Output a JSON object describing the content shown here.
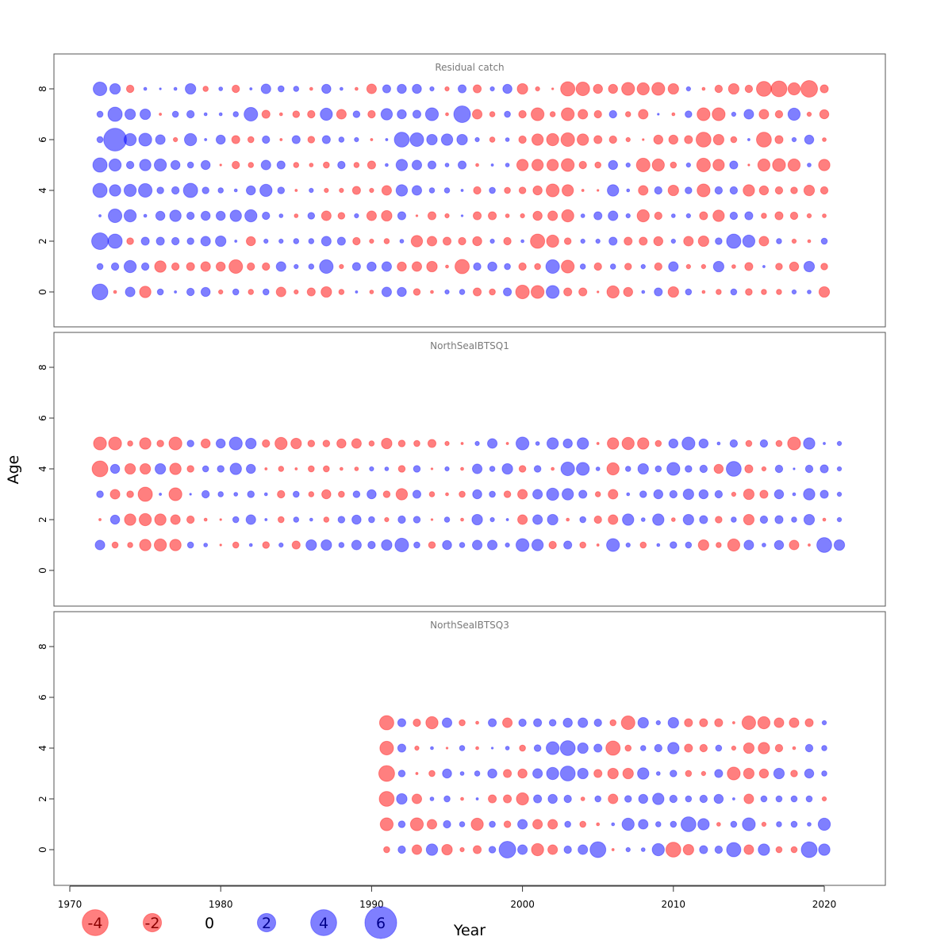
{
  "chart_data": {
    "type": "scatter",
    "subtype": "bubble",
    "xlabel": "Year",
    "ylabel": "Age",
    "x_range": [
      1970,
      2024
    ],
    "xticks": [
      1970,
      1980,
      1990,
      2000,
      2010,
      2020
    ],
    "y_range": [
      -1.5,
      9.5
    ],
    "yticks": [
      0,
      2,
      4,
      6,
      8
    ],
    "colors": {
      "negative": "#ff0000",
      "positive": "#0000ff"
    },
    "legend": {
      "placement": "bottom-left",
      "values": [
        -4,
        -2,
        0,
        2,
        4,
        6
      ]
    },
    "panels": [
      {
        "title": "Residual catch",
        "first_year": 1972,
        "rows": [
          {
            "age": 8,
            "values": [
              1.0,
              0.6,
              -0.3,
              0.05,
              0.02,
              0.05,
              0.6,
              -0.15,
              0.08,
              -0.3,
              0.03,
              0.5,
              0.2,
              0.15,
              -0.05,
              0.45,
              0.05,
              -0.05,
              -0.5,
              0.35,
              0.45,
              0.45,
              0.1,
              -0.1,
              0.35,
              -0.35,
              0.1,
              0.45,
              -0.6,
              -0.1,
              -0.02,
              -1.1,
              -1.0,
              -0.45,
              -0.45,
              -0.9,
              -0.8,
              -0.9,
              -0.6,
              0.1,
              -0.05,
              -0.3,
              -0.6,
              -0.3,
              -1.2,
              -1.35,
              -0.8,
              -1.5,
              -0.35
            ]
          },
          {
            "age": 7,
            "values": [
              0.2,
              1.1,
              0.6,
              0.6,
              -0.03,
              0.2,
              0.3,
              0.05,
              0.05,
              0.15,
              1.0,
              -0.35,
              -0.05,
              -0.25,
              -0.3,
              0.8,
              -0.5,
              0.25,
              -0.3,
              0.7,
              0.45,
              0.35,
              0.9,
              -0.05,
              1.5,
              -0.5,
              -0.15,
              0.2,
              -0.3,
              -0.9,
              -0.15,
              -0.9,
              -0.5,
              -0.3,
              0.3,
              -0.15,
              -0.5,
              0.02,
              -0.05,
              0.25,
              -0.9,
              -0.9,
              0.1,
              0.5,
              -0.5,
              -0.3,
              0.8,
              -0.1,
              -0.45
            ]
          },
          {
            "age": 6,
            "values": [
              0.2,
              2.8,
              0.8,
              0.9,
              0.5,
              -0.1,
              0.8,
              0.03,
              0.45,
              -0.35,
              -0.2,
              0.3,
              -0.03,
              0.35,
              -0.25,
              0.35,
              0.15,
              0.1,
              -0.03,
              0.03,
              1.2,
              1.0,
              0.6,
              0.7,
              0.6,
              0.1,
              -0.15,
              0.08,
              -0.3,
              -0.7,
              -0.8,
              -1.0,
              -0.7,
              -0.35,
              -0.3,
              -0.1,
              -0.02,
              -0.45,
              -0.45,
              -0.35,
              -1.2,
              -0.6,
              -0.2,
              0.03,
              -1.2,
              -0.35,
              0.1,
              0.45,
              -0.08
            ]
          },
          {
            "age": 5,
            "values": [
              1.1,
              0.8,
              0.3,
              0.7,
              0.8,
              0.45,
              0.2,
              0.45,
              -0.02,
              -0.3,
              -0.15,
              0.5,
              0.35,
              -0.15,
              -0.08,
              -0.2,
              0.3,
              -0.15,
              -0.35,
              0.05,
              0.7,
              0.5,
              0.35,
              0.08,
              0.35,
              -0.05,
              0.03,
              0.08,
              -0.7,
              -0.7,
              -0.7,
              -0.9,
              -0.3,
              -0.2,
              0.45,
              0.1,
              -1.0,
              -0.8,
              -0.2,
              0.1,
              -1.0,
              -0.7,
              0.35,
              -0.02,
              -0.8,
              -0.9,
              -0.8,
              0.08,
              -0.7
            ]
          },
          {
            "age": 4,
            "values": [
              1.1,
              0.7,
              0.8,
              1.0,
              0.25,
              0.3,
              1.1,
              0.25,
              0.15,
              0.05,
              0.45,
              0.8,
              0.25,
              -0.03,
              0.1,
              -0.1,
              -0.1,
              -0.35,
              -0.1,
              -0.5,
              0.7,
              0.5,
              0.15,
              0.15,
              0.03,
              -0.3,
              0.2,
              -0.2,
              -0.25,
              -0.45,
              -0.9,
              -0.7,
              -0.03,
              -0.02,
              0.7,
              0.05,
              -0.5,
              0.3,
              -0.6,
              0.25,
              -0.9,
              0.3,
              0.3,
              -0.7,
              -0.45,
              -0.3,
              -0.25,
              -0.6,
              -0.3
            ]
          },
          {
            "age": 3,
            "values": [
              0.03,
              1.0,
              0.8,
              0.05,
              0.45,
              0.7,
              0.3,
              0.45,
              0.45,
              0.7,
              0.8,
              0.3,
              0.08,
              -0.08,
              0.25,
              -0.5,
              -0.25,
              0.1,
              -0.5,
              -0.6,
              0.35,
              -0.02,
              -0.35,
              -0.1,
              0.02,
              -0.35,
              -0.35,
              -0.08,
              -0.1,
              -0.45,
              -0.5,
              -0.8,
              0.08,
              0.35,
              0.5,
              0.1,
              -0.8,
              -0.3,
              0.08,
              0.1,
              -0.35,
              -0.7,
              0.3,
              0.35,
              -0.15,
              -0.35,
              -0.3,
              -0.1,
              -0.08
            ]
          },
          {
            "age": 2,
            "values": [
              1.5,
              1.1,
              -0.25,
              0.35,
              0.35,
              0.3,
              0.25,
              0.5,
              0.6,
              0.03,
              -0.45,
              0.1,
              0.1,
              0.15,
              0.15,
              0.5,
              0.35,
              -0.3,
              -0.1,
              -0.15,
              0.08,
              -0.7,
              -0.5,
              -0.35,
              -0.3,
              -0.45,
              0.1,
              -0.3,
              0.05,
              -1.1,
              -0.8,
              -0.25,
              0.1,
              0.1,
              0.35,
              -0.35,
              -0.35,
              -0.45,
              0.1,
              -0.5,
              -0.6,
              0.25,
              1.1,
              0.8,
              -0.5,
              0.15,
              -0.1,
              -0.05,
              0.2
            ]
          },
          {
            "age": 1,
            "values": [
              0.2,
              0.3,
              0.8,
              0.3,
              -0.7,
              -0.3,
              -0.35,
              -0.5,
              -0.45,
              -1.0,
              -0.3,
              -0.3,
              0.5,
              0.1,
              0.15,
              1.0,
              -0.1,
              0.35,
              0.45,
              0.5,
              -0.45,
              -0.5,
              -0.6,
              -0.05,
              -1.1,
              0.3,
              0.45,
              0.2,
              -0.3,
              -0.2,
              1.0,
              -0.9,
              0.15,
              -0.3,
              0.15,
              -0.25,
              0.1,
              -0.3,
              0.5,
              -0.1,
              -0.1,
              0.6,
              -0.08,
              -0.35,
              0.03,
              -0.25,
              -0.45,
              0.6,
              -0.25
            ]
          },
          {
            "age": 0,
            "values": [
              1.35,
              -0.05,
              0.5,
              -0.7,
              0.2,
              0.03,
              0.3,
              0.45,
              -0.1,
              0.2,
              -0.15,
              0.2,
              -0.5,
              -0.1,
              -0.35,
              -0.6,
              -0.15,
              0.03,
              -0.08,
              0.5,
              0.45,
              -0.25,
              -0.05,
              0.1,
              0.15,
              -0.35,
              -0.2,
              0.35,
              -1.0,
              -0.9,
              0.9,
              -0.35,
              -0.35,
              -0.02,
              -0.8,
              -0.45,
              0.05,
              0.35,
              -0.6,
              0.2,
              -0.05,
              -0.15,
              0.2,
              -0.25,
              -0.15,
              -0.15,
              0.1,
              0.08,
              -0.6
            ]
          }
        ]
      },
      {
        "title": "NorthSeaIBTSQ1",
        "first_year": 1972,
        "rows": [
          {
            "age": 5,
            "values": [
              -0.9,
              -0.9,
              -0.15,
              -0.7,
              -0.25,
              -0.9,
              0.25,
              -0.45,
              0.45,
              0.9,
              0.6,
              -0.3,
              -0.8,
              -0.6,
              -0.25,
              -0.25,
              -0.45,
              -0.5,
              -0.15,
              -0.6,
              -0.25,
              -0.2,
              -0.35,
              -0.1,
              -0.03,
              0.1,
              0.5,
              -0.03,
              0.9,
              0.08,
              0.7,
              0.45,
              0.7,
              -0.03,
              -0.7,
              -0.8,
              -0.7,
              -0.2,
              0.45,
              0.9,
              0.45,
              0.05,
              0.3,
              -0.2,
              0.3,
              -0.2,
              -0.9,
              0.7,
              0.03,
              0.1
            ]
          },
          {
            "age": 4,
            "values": [
              -1.35,
              0.45,
              -0.6,
              -0.6,
              0.6,
              -0.7,
              -0.25,
              0.2,
              0.25,
              0.7,
              0.45,
              -0.03,
              -0.15,
              -0.03,
              -0.2,
              -0.2,
              -0.05,
              -0.08,
              0.1,
              0.08,
              -0.25,
              0.25,
              -0.02,
              0.1,
              -0.05,
              0.5,
              0.15,
              0.6,
              -0.25,
              0.25,
              -0.05,
              1.0,
              0.9,
              0.08,
              -0.8,
              0.15,
              0.6,
              0.2,
              0.9,
              0.25,
              0.3,
              -0.45,
              1.2,
              -0.35,
              -0.1,
              0.3,
              0.02,
              0.3,
              0.35,
              0.1
            ]
          },
          {
            "age": 3,
            "values": [
              0.25,
              -0.5,
              -0.25,
              -1.1,
              0.03,
              -0.9,
              0.02,
              0.3,
              0.15,
              0.08,
              0.25,
              0.05,
              -0.3,
              0.2,
              -0.15,
              -0.45,
              -0.2,
              0.25,
              0.45,
              -0.25,
              -0.7,
              0.35,
              -0.15,
              -0.05,
              -0.2,
              0.45,
              0.2,
              -0.25,
              -0.5,
              0.5,
              0.8,
              0.7,
              0.35,
              -0.15,
              -0.5,
              0.05,
              0.25,
              0.45,
              0.3,
              0.6,
              0.45,
              0.3,
              -0.1,
              -0.6,
              -0.35,
              0.45,
              0.05,
              0.7,
              0.35,
              0.1
            ]
          },
          {
            "age": 2,
            "values": [
              -0.03,
              0.45,
              -0.7,
              -0.8,
              -0.7,
              -0.5,
              -0.3,
              -0.05,
              -0.02,
              0.2,
              0.5,
              0.03,
              -0.2,
              0.15,
              0.05,
              -0.15,
              0.25,
              0.45,
              0.2,
              -0.1,
              0.3,
              0.25,
              -0.02,
              0.15,
              -0.05,
              0.6,
              0.1,
              0.03,
              -0.5,
              0.5,
              0.6,
              -0.05,
              0.2,
              -0.3,
              -0.5,
              0.7,
              0.08,
              0.7,
              -0.08,
              0.6,
              0.35,
              -0.25,
              0.15,
              -0.6,
              0.3,
              0.35,
              0.15,
              0.6,
              -0.05,
              0.1
            ]
          },
          {
            "age": 1,
            "values": [
              0.5,
              -0.2,
              -0.15,
              -0.7,
              -0.8,
              -0.7,
              0.2,
              0.08,
              -0.02,
              -0.2,
              0.05,
              -0.25,
              0.1,
              -0.35,
              0.6,
              0.6,
              0.15,
              0.5,
              0.3,
              0.6,
              1.0,
              0.2,
              -0.25,
              0.45,
              0.15,
              0.5,
              0.5,
              0.1,
              0.9,
              0.7,
              -0.3,
              0.35,
              -0.2,
              -0.03,
              0.9,
              0.1,
              -0.2,
              0.05,
              0.25,
              0.2,
              -0.6,
              -0.15,
              -0.8,
              0.5,
              0.08,
              0.45,
              -0.5,
              -0.03,
              1.2,
              0.6
            ]
          }
        ]
      },
      {
        "title": "NorthSeaIBTSQ3",
        "first_year": 1991,
        "rows": [
          {
            "age": 5,
            "values": [
              -1.1,
              0.35,
              -0.3,
              -0.8,
              0.5,
              -0.2,
              -0.05,
              0.35,
              -0.5,
              0.3,
              0.35,
              0.25,
              0.45,
              0.5,
              0.3,
              -0.2,
              -1.0,
              0.6,
              0.1,
              0.6,
              -0.35,
              -0.35,
              -0.35,
              -0.03,
              -1.0,
              -0.8,
              -0.5,
              -0.5,
              -0.35,
              0.1
            ]
          },
          {
            "age": 4,
            "values": [
              -1.0,
              0.35,
              -0.1,
              0.05,
              -0.02,
              0.15,
              -0.05,
              0.02,
              0.08,
              -0.2,
              0.25,
              0.9,
              1.2,
              0.6,
              0.35,
              -1.1,
              -0.2,
              0.15,
              0.3,
              0.7,
              -0.35,
              -0.3,
              0.2,
              -0.1,
              -0.6,
              -0.7,
              -0.3,
              -0.05,
              0.3,
              0.15
            ]
          },
          {
            "age": 3,
            "values": [
              -1.35,
              0.25,
              -0.03,
              -0.2,
              0.45,
              0.08,
              0.15,
              0.45,
              -0.35,
              -0.45,
              0.5,
              0.8,
              1.2,
              0.6,
              -0.35,
              -0.6,
              -0.6,
              0.7,
              0.08,
              0.25,
              -0.2,
              -0.1,
              0.35,
              -0.9,
              -0.6,
              -0.45,
              0.6,
              -0.25,
              0.45,
              0.15
            ]
          },
          {
            "age": 2,
            "values": [
              -1.2,
              0.6,
              -0.5,
              0.08,
              0.2,
              -0.05,
              0.03,
              -0.35,
              -0.35,
              -0.8,
              0.35,
              0.45,
              0.3,
              -0.08,
              0.2,
              -0.5,
              0.25,
              0.45,
              0.7,
              0.3,
              0.2,
              0.3,
              0.45,
              0.03,
              -0.5,
              0.2,
              0.2,
              0.2,
              0.2,
              -0.1
            ]
          },
          {
            "age": 1,
            "values": [
              -0.9,
              0.25,
              -0.9,
              -0.5,
              0.3,
              0.15,
              -0.8,
              0.2,
              -0.25,
              0.5,
              -0.5,
              -0.5,
              0.2,
              -0.2,
              -0.05,
              0.05,
              0.8,
              0.5,
              0.15,
              0.2,
              1.2,
              0.7,
              -0.08,
              0.2,
              0.9,
              -0.1,
              0.15,
              0.2,
              0.08,
              0.8
            ]
          },
          {
            "age": 0,
            "values": [
              -0.2,
              0.3,
              -0.5,
              0.7,
              -0.6,
              -0.1,
              -0.35,
              0.25,
              1.5,
              0.5,
              -0.8,
              -0.5,
              0.3,
              0.5,
              1.35,
              -0.03,
              0.1,
              0.08,
              0.8,
              -1.2,
              -0.6,
              0.35,
              0.3,
              1.1,
              -0.5,
              0.7,
              -0.2,
              -0.2,
              1.35,
              0.7
            ]
          }
        ]
      }
    ]
  }
}
